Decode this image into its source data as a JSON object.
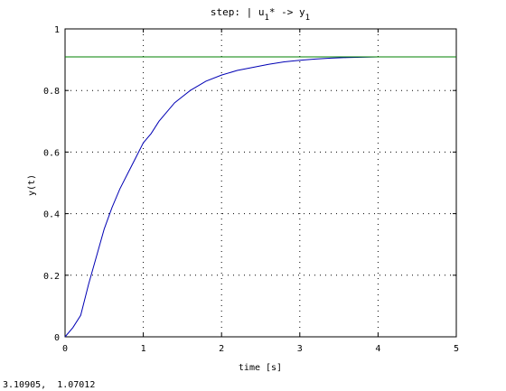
{
  "status": {
    "cursor_readout": "3.10905,  1.07012"
  },
  "chart_data": {
    "type": "line",
    "title": "step: | u1* -> y1",
    "xlabel": "time [s]",
    "ylabel": "y(t)",
    "xlim": [
      0,
      5
    ],
    "ylim": [
      0,
      1
    ],
    "xticks": [
      0,
      1,
      2,
      3,
      4,
      5
    ],
    "yticks": [
      0,
      0.2,
      0.4,
      0.6,
      0.8,
      1
    ],
    "xtick_labels": [
      "0",
      "1",
      "2",
      "3",
      "4",
      "5"
    ],
    "ytick_labels": [
      "0",
      "0.2",
      "0.4",
      "0.6",
      "0.8",
      "1"
    ],
    "grid": true,
    "series": [
      {
        "color": "#0000b4",
        "x": [
          0,
          0.1,
          0.2,
          0.3,
          0.4,
          0.5,
          0.6,
          0.7,
          0.8,
          0.9,
          1.0,
          1.1,
          1.2,
          1.3,
          1.4,
          1.5,
          1.6,
          1.8,
          2.0,
          2.2,
          2.4,
          2.6,
          2.8,
          3.0,
          3.2,
          3.4,
          3.6,
          3.8,
          4.0,
          4.5,
          5.0
        ],
        "y": [
          0,
          0.03,
          0.07,
          0.17,
          0.26,
          0.35,
          0.42,
          0.48,
          0.53,
          0.58,
          0.63,
          0.66,
          0.7,
          0.73,
          0.76,
          0.78,
          0.8,
          0.83,
          0.85,
          0.865,
          0.875,
          0.885,
          0.893,
          0.898,
          0.902,
          0.905,
          0.907,
          0.908,
          0.909,
          0.909,
          0.909
        ]
      },
      {
        "color": "#008000",
        "x": [
          0,
          5
        ],
        "y": [
          0.909,
          0.909
        ]
      }
    ]
  }
}
